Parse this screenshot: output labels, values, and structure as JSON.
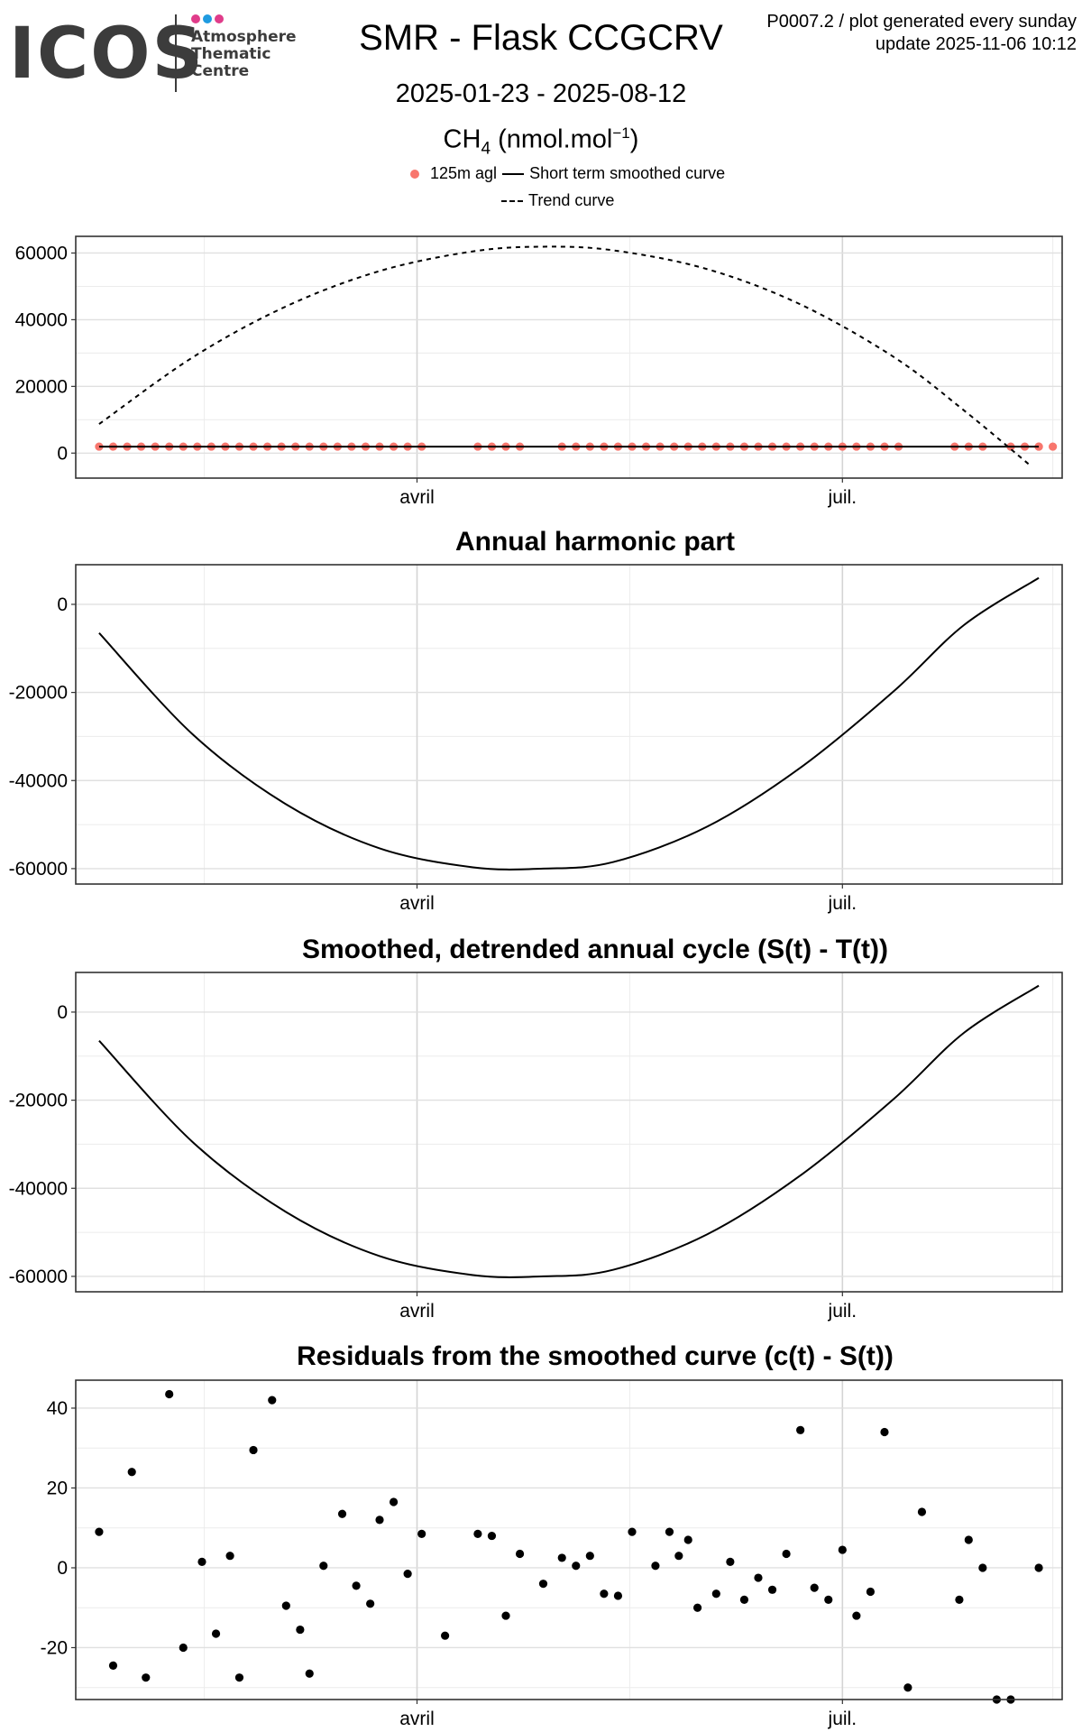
{
  "header": {
    "logo": {
      "wordmark": "ICOS",
      "line1": "Atmosphere",
      "line2": "Thematic",
      "line3": "Centre",
      "dot_colors": [
        "#e03c8a",
        "#1f9be0",
        "#e03c8a"
      ]
    },
    "title": "SMR - Flask CCGCRV",
    "date_range": "2025-01-23 - 2025-08-12",
    "species_base": "CH",
    "species_sub": "4",
    "species_unit_open": " (nmol.mol",
    "species_unit_sup": "−1",
    "species_unit_close": ")",
    "plot_id_text": "P0007.2 / plot generated every sunday",
    "update_text": "update  2025-11-06 10:12"
  },
  "legend": {
    "point_label": "125m agl",
    "smoothed_label": "Short term smoothed curve",
    "trend_label": "Trend curve",
    "point_color": "#f8766d"
  },
  "chart_data": [
    {
      "type": "scatter",
      "id": "concentration",
      "title": "",
      "xlabel": "",
      "ylabel": "",
      "x_ticks": [
        "avril",
        "juil."
      ],
      "y_ticks": [
        0,
        20000,
        40000,
        60000
      ],
      "ylim": [
        -7500,
        65000
      ],
      "xlim": [
        -5,
        206
      ],
      "grid": true,
      "series": [
        {
          "name": "125m agl",
          "kind": "points",
          "color": "#f8766d",
          "x": [
            0,
            3,
            6,
            9,
            12,
            15,
            18,
            21,
            24,
            27,
            30,
            33,
            36,
            39,
            42,
            45,
            48,
            51,
            54,
            57,
            60,
            63,
            66,
            69,
            81,
            84,
            87,
            90,
            99,
            102,
            105,
            108,
            111,
            114,
            117,
            120,
            123,
            126,
            129,
            132,
            135,
            138,
            141,
            144,
            147,
            150,
            153,
            156,
            159,
            162,
            165,
            168,
            171,
            183,
            186,
            189,
            195,
            198,
            201,
            204,
            201
          ],
          "values": [
            1950,
            1950,
            1950,
            1950,
            1950,
            1950,
            1950,
            1950,
            1950,
            1950,
            1950,
            1950,
            1950,
            1950,
            1950,
            1950,
            1950,
            1950,
            1950,
            1950,
            1950,
            1950,
            1950,
            1950,
            1950,
            1950,
            1950,
            1950,
            1950,
            1950,
            1950,
            1950,
            1950,
            1950,
            1950,
            1950,
            1950,
            1950,
            1950,
            1950,
            1950,
            1950,
            1950,
            1950,
            1950,
            1950,
            1950,
            1950,
            1950,
            1950,
            1950,
            1950,
            1950,
            1950,
            1950,
            1950,
            1950,
            1950,
            1950,
            1950,
            1950
          ]
        },
        {
          "name": "Short term smoothed curve",
          "kind": "line",
          "x": [
            0,
            201
          ],
          "values": [
            1950,
            1950
          ]
        },
        {
          "name": "Trend curve",
          "kind": "dashed-line",
          "x": [
            0,
            20,
            40,
            60,
            80,
            95,
            110,
            130,
            150,
            170,
            185,
            199
          ],
          "values": [
            8700,
            28700,
            44000,
            54600,
            60500,
            61900,
            60800,
            55200,
            44600,
            28800,
            12800,
            -3500
          ]
        }
      ]
    },
    {
      "type": "line",
      "id": "annual-harmonic",
      "title": "Annual harmonic part",
      "x_ticks": [
        "avril",
        "juil."
      ],
      "y_ticks": [
        0,
        -20000,
        -40000,
        -60000
      ],
      "ylim": [
        -63500,
        9000
      ],
      "xlim": [
        -5,
        206
      ],
      "grid": true,
      "series": [
        {
          "name": "annual harmonic",
          "x": [
            0,
            20,
            40,
            60,
            80,
            95,
            110,
            130,
            150,
            170,
            185,
            201
          ],
          "values": [
            -6500,
            -29500,
            -45400,
            -55400,
            -59700,
            -60000,
            -58500,
            -50500,
            -37100,
            -19700,
            -4700,
            6000
          ]
        }
      ]
    },
    {
      "type": "line",
      "id": "detrended-cycle",
      "title": "Smoothed, detrended annual cycle (S(t) - T(t))",
      "x_ticks": [
        "avril",
        "juil."
      ],
      "y_ticks": [
        0,
        -20000,
        -40000,
        -60000
      ],
      "ylim": [
        -63500,
        9000
      ],
      "xlim": [
        -5,
        206
      ],
      "grid": true,
      "series": [
        {
          "name": "S(t) - T(t)",
          "x": [
            0,
            20,
            40,
            60,
            80,
            95,
            110,
            130,
            150,
            170,
            185,
            201
          ],
          "values": [
            -6500,
            -29500,
            -45400,
            -55400,
            -59700,
            -60000,
            -58500,
            -50500,
            -37100,
            -19700,
            -4700,
            6000
          ]
        }
      ]
    },
    {
      "type": "scatter",
      "id": "residuals",
      "title": "Residuals from the smoothed curve (c(t) - S(t))",
      "x_ticks": [
        "avril",
        "juil."
      ],
      "y_ticks": [
        40,
        20,
        0,
        -20
      ],
      "ylim": [
        -33,
        47
      ],
      "xlim": [
        -5,
        206
      ],
      "grid": true,
      "series": [
        {
          "name": "residuals",
          "color": "#000000",
          "x": [
            0,
            3,
            7,
            10,
            15,
            18,
            22,
            25,
            28,
            30,
            33,
            37,
            40,
            43,
            45,
            48,
            52,
            55,
            58,
            60,
            63,
            66,
            69,
            74,
            81,
            84,
            87,
            90,
            95,
            99,
            102,
            105,
            108,
            111,
            114,
            119,
            122,
            124,
            126,
            128,
            132,
            135,
            138,
            141,
            144,
            147,
            150,
            153,
            156,
            159,
            162,
            165,
            168,
            173,
            176,
            184,
            186,
            189,
            192,
            195,
            201
          ],
          "values": [
            9,
            -24.5,
            24,
            -27.5,
            43.5,
            -20,
            1.5,
            -16.5,
            3,
            -27.5,
            29.5,
            42,
            -9.5,
            -15.5,
            -26.5,
            0.5,
            13.5,
            -4.5,
            -9,
            12,
            16.5,
            -1.5,
            8.5,
            -17,
            8.5,
            8,
            -12,
            3.5,
            -4,
            2.5,
            0.5,
            3,
            -6.5,
            -7,
            9,
            0.5,
            9,
            3,
            7,
            -10,
            -6.5,
            1.5,
            -8,
            -2.5,
            -5.5,
            3.5,
            34.5,
            -5,
            -8,
            4.5,
            -12,
            -6,
            34,
            -30,
            14,
            -8,
            7,
            0,
            -33,
            -33,
            0
          ]
        }
      ]
    }
  ]
}
